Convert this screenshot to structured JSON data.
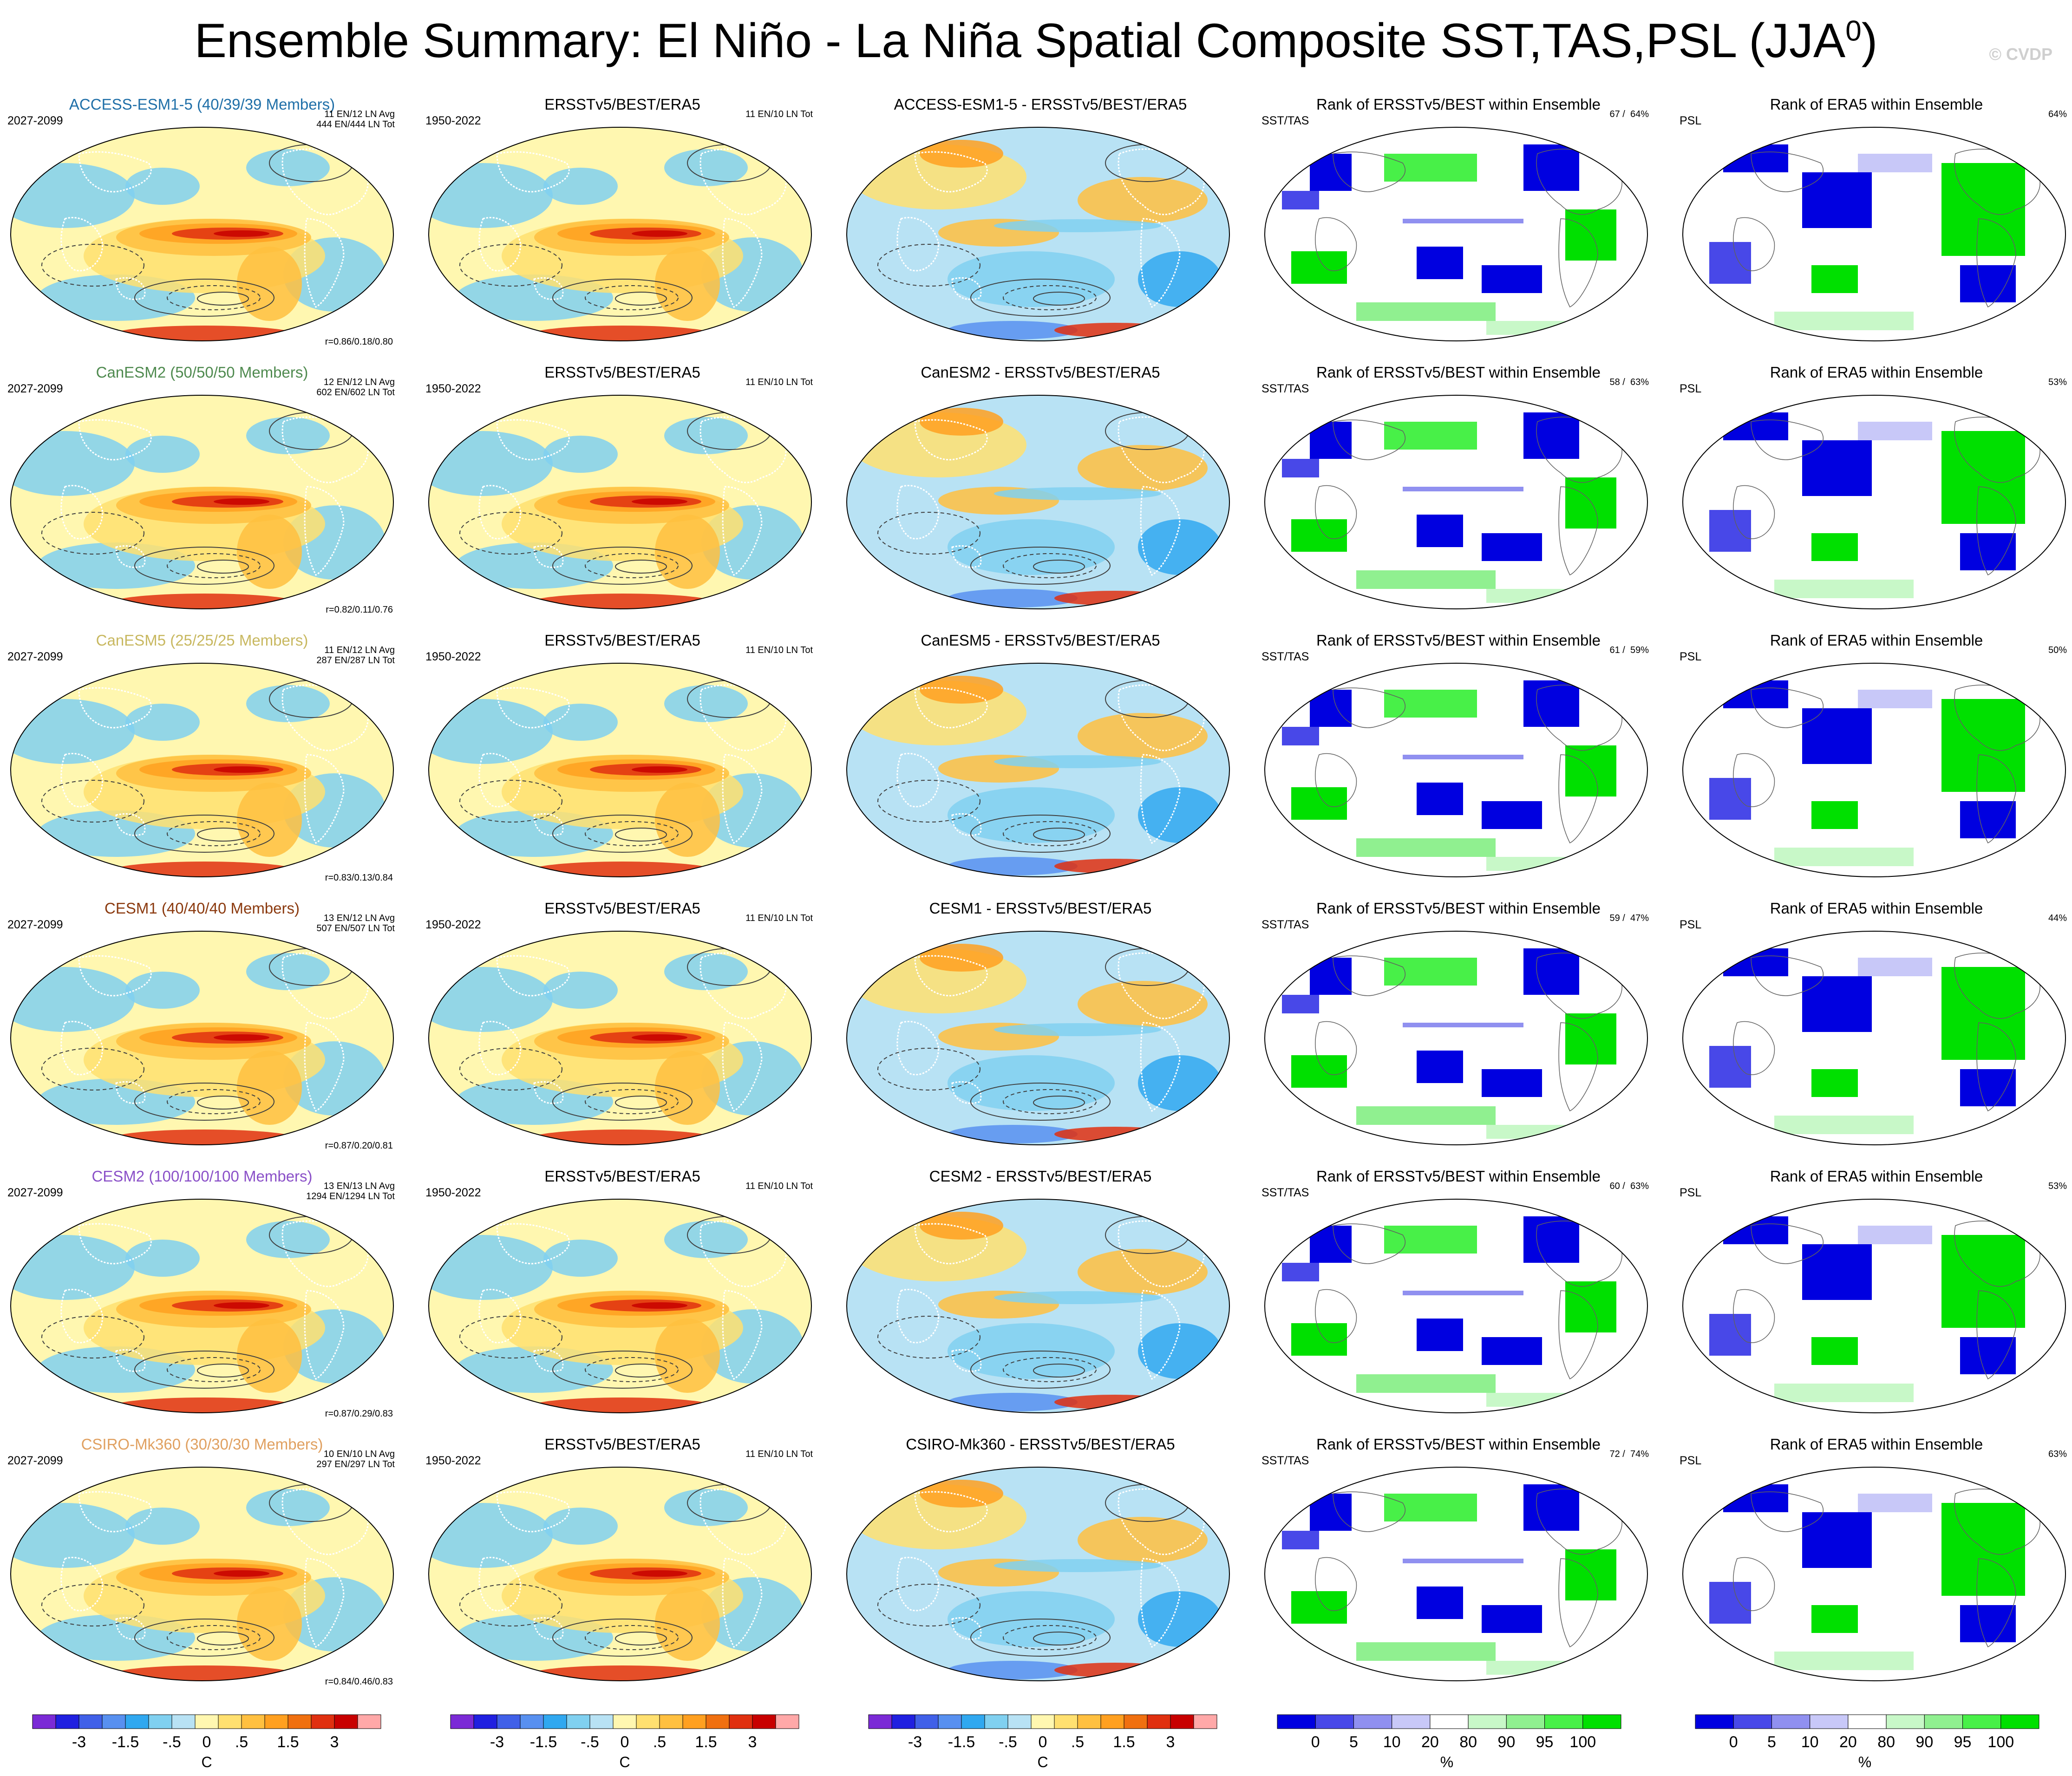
{
  "title": {
    "main": "Ensemble Summary: El Niño - La Niña Spatial Composite SST,TAS,PSL (JJA",
    "sup": "0",
    "close": ")"
  },
  "copyright": "© CVDP",
  "colors": {
    "diverging": [
      "#7b2ad6",
      "#2020e0",
      "#4060e8",
      "#5890f0",
      "#30a8f0",
      "#80d0f0",
      "#b8e2f4",
      "#fff7b0",
      "#ffe070",
      "#ffc040",
      "#ffa020",
      "#f07010",
      "#e03010",
      "#c80000",
      "#ffa8a8"
    ],
    "rank": [
      "#0000e0",
      "#4848e8",
      "#9090f0",
      "#c8c8f8",
      "#ffffff",
      "#c8f8c8",
      "#90f090",
      "#48f048",
      "#00e000"
    ],
    "contour": "#404040",
    "land_outline": "#ffffff",
    "coast_outline": "#606060"
  },
  "rows": [
    {
      "model": "ACCESS-ESM1-5 (40/39/39 Members)",
      "model_color": "#1f6fa8",
      "period": "2027-2099",
      "counts": [
        "11 EN/12 LN Avg",
        "444 EN/444 LN Tot"
      ],
      "r": "r=0.86/0.18/0.80",
      "diff_title": "ACCESS-ESM1-5 - ERSSTv5/BEST/ERA5",
      "sst_pct": "67 /  64%",
      "psl_pct": "64%"
    },
    {
      "model": "CanESM2 (50/50/50 Members)",
      "model_color": "#4f8a4f",
      "period": "2027-2099",
      "counts": [
        "12 EN/12 LN Avg",
        "602 EN/602 LN Tot"
      ],
      "r": "r=0.82/0.11/0.76",
      "diff_title": "CanESM2 - ERSSTv5/BEST/ERA5",
      "sst_pct": "58 /  63%",
      "psl_pct": "53%"
    },
    {
      "model": "CanESM5 (25/25/25 Members)",
      "model_color": "#c8b860",
      "period": "2027-2099",
      "counts": [
        "11 EN/12 LN Avg",
        "287 EN/287 LN Tot"
      ],
      "r": "r=0.83/0.13/0.84",
      "diff_title": "CanESM5 - ERSSTv5/BEST/ERA5",
      "sst_pct": "61 /  59%",
      "psl_pct": "50%"
    },
    {
      "model": "CESM1 (40/40/40 Members)",
      "model_color": "#8b3a0f",
      "period": "2027-2099",
      "counts": [
        "13 EN/12 LN Avg",
        "507 EN/507 LN Tot"
      ],
      "r": "r=0.87/0.20/0.81",
      "diff_title": "CESM1 - ERSSTv5/BEST/ERA5",
      "sst_pct": "59 /  47%",
      "psl_pct": "44%"
    },
    {
      "model": "CESM2 (100/100/100 Members)",
      "model_color": "#8a50c8",
      "period": "2027-2099",
      "counts": [
        "13 EN/13 LN Avg",
        "1294 EN/1294 LN Tot"
      ],
      "r": "r=0.87/0.29/0.83",
      "diff_title": "CESM2 - ERSSTv5/BEST/ERA5",
      "sst_pct": "60 /  63%",
      "psl_pct": "53%"
    },
    {
      "model": "CSIRO-Mk360 (30/30/30 Members)",
      "model_color": "#e0a060",
      "period": "2027-2099",
      "counts": [
        "10 EN/10 LN Avg",
        "297 EN/297 LN Tot"
      ],
      "r": "r=0.84/0.46/0.83",
      "diff_title": "CSIRO-Mk360 - ERSSTv5/BEST/ERA5",
      "sst_pct": "72 /  74%",
      "psl_pct": "63%"
    }
  ],
  "obs": {
    "title": "ERSSTv5/BEST/ERA5",
    "period": "1950-2022",
    "counts": "11 EN/10 LN Tot"
  },
  "rank_sst": {
    "title": "Rank of ERSSTv5/BEST within Ensemble",
    "label": "SST/TAS"
  },
  "rank_psl": {
    "title": "Rank of ERA5 within Ensemble",
    "label": "PSL"
  },
  "colorbar_temp": {
    "labels": [
      "-3",
      "-1.5",
      "-.5",
      "0",
      ".5",
      "1.5",
      "3"
    ],
    "unit": "C"
  },
  "colorbar_rank": {
    "labels": [
      "0",
      "5",
      "10",
      "20",
      "80",
      "90",
      "95",
      "100"
    ],
    "unit": "%"
  }
}
